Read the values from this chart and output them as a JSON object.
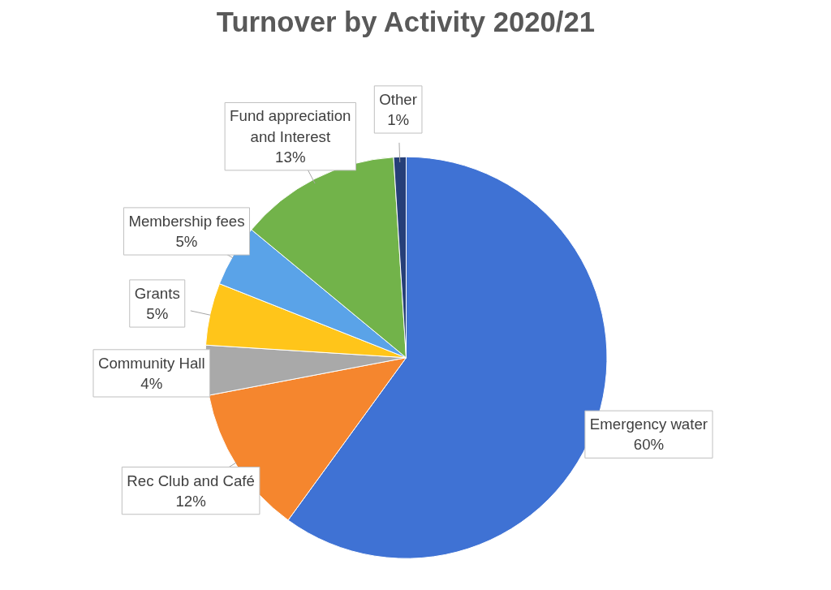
{
  "chart_data": {
    "type": "pie",
    "title": "Turnover by Activity 2020/21",
    "categories": [
      "Emergency water",
      "Rec Club and Café",
      "Community Hall",
      "Grants",
      "Membership fees",
      "Fund appreciation and Interest",
      "Other"
    ],
    "values": [
      60,
      12,
      4,
      5,
      5,
      13,
      1
    ],
    "colors": [
      "#3f72d4",
      "#f5862e",
      "#a9a9a9",
      "#ffc51a",
      "#5aa3e8",
      "#72b34a",
      "#263f78"
    ],
    "value_labels": [
      "60%",
      "12%",
      "4%",
      "5%",
      "5%",
      "13%",
      "1%"
    ]
  }
}
